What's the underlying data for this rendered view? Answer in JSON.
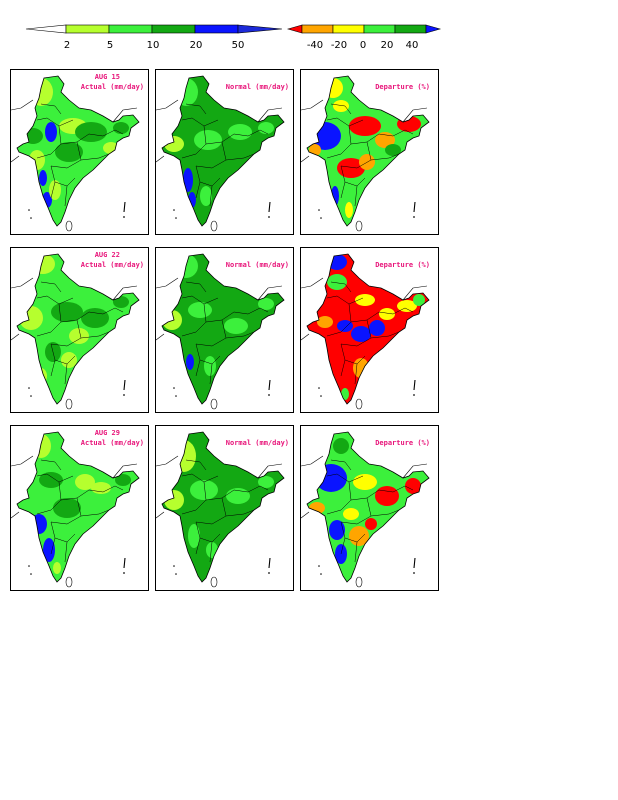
{
  "legend_actual": {
    "colors": [
      "#ffffff",
      "#b6ff2e",
      "#3cf03c",
      "#13a813",
      "#0a14ff",
      "#1c2ad8"
    ],
    "ticks": [
      "2",
      "5",
      "10",
      "20",
      "50"
    ]
  },
  "legend_departure": {
    "colors": [
      "#ff0000",
      "#ffa500",
      "#ffff00",
      "#3cf03c",
      "#13a813",
      "#0a14ff"
    ],
    "ticks": [
      "-40",
      "-20",
      "0",
      "20",
      "40"
    ]
  },
  "rows": [
    {
      "date": "AUG 15",
      "actual_title": "Actual (mm/day)",
      "normal_title": "Normal (mm/day)",
      "departure_title": "Departure (%)"
    },
    {
      "date": "AUG 22",
      "actual_title": "Actual (mm/day)",
      "normal_title": "Normal (mm/day)",
      "departure_title": "Departure (%)"
    },
    {
      "date": "AUG 29",
      "actual_title": "Actual (mm/day)",
      "normal_title": "Normal (mm/day)",
      "departure_title": "Departure (%)"
    }
  ],
  "palette": {
    "light_green": "#b6ff2e",
    "green": "#3cf03c",
    "dark_green": "#13a813",
    "blue": "#0a14ff",
    "red": "#ff0000",
    "orange": "#ffa500",
    "yellow": "#ffff00",
    "title_color": "#e8157a"
  }
}
